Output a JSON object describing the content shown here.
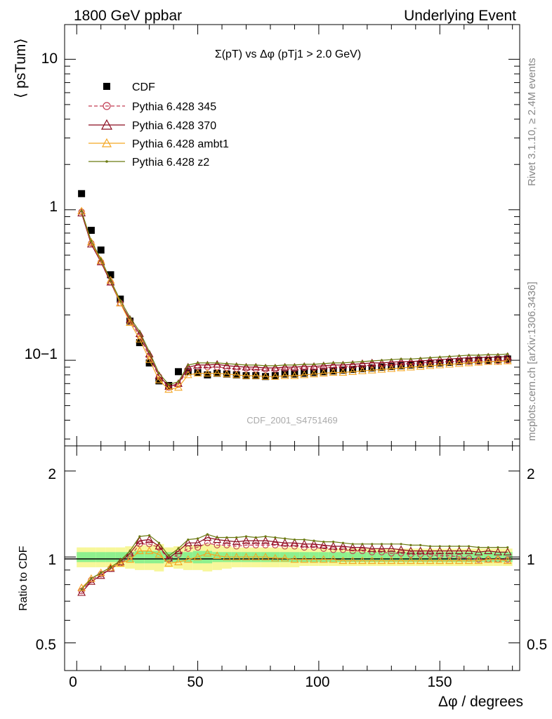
{
  "header": {
    "left_label": "1800 GeV ppbar",
    "right_label": "Underlying Event"
  },
  "side_labels": {
    "rivet": "Rivet 3.1.10, ≥ 2.4M events",
    "mcplots": "mcplots.cern.ch [arXiv:1306.3436]"
  },
  "watermark": "CDF_2001_S4751469",
  "colors": {
    "data": "#000000",
    "p345": "#c23b52",
    "p370": "#8b0a1e",
    "ambt1": "#f4a623",
    "z2": "#6b7a12",
    "band_inner": "#8ef08e",
    "band_outer": "#f7f79a"
  },
  "chart_data": [
    {
      "type": "scatter",
      "panel": "main",
      "title": "Σ(pT) vs Δφ (pTj1 > 2.0 GeV)",
      "ylabel": "⟨ psTum⟩",
      "yscale": "log",
      "xlim": [
        -5,
        183
      ],
      "ylim": [
        0.027,
        17
      ],
      "y_tick_labels": [
        "10",
        "1",
        "10−1"
      ],
      "legend_position": "top-left",
      "x": [
        2,
        6,
        10,
        14,
        18,
        22,
        26,
        30,
        34,
        38,
        42,
        46,
        50,
        54,
        58,
        62,
        66,
        70,
        74,
        78,
        82,
        86,
        90,
        94,
        98,
        102,
        106,
        110,
        114,
        118,
        122,
        126,
        130,
        134,
        138,
        142,
        146,
        150,
        154,
        158,
        162,
        166,
        170,
        174,
        178
      ],
      "series": [
        {
          "name": "CDF",
          "marker": "filled-square",
          "values": [
            1.28,
            0.73,
            0.54,
            0.37,
            0.255,
            0.182,
            0.131,
            0.096,
            0.073,
            0.068,
            0.084,
            0.084,
            0.083,
            0.08,
            0.082,
            0.081,
            0.08,
            0.079,
            0.079,
            0.078,
            0.079,
            0.081,
            0.081,
            0.082,
            0.083,
            0.084,
            0.085,
            0.086,
            0.087,
            0.088,
            0.089,
            0.09,
            0.091,
            0.092,
            0.093,
            0.094,
            0.095,
            0.096,
            0.097,
            0.098,
            0.099,
            0.1,
            0.1,
            0.101,
            0.102
          ]
        },
        {
          "name": "Pythia 6.428 345",
          "marker": "open-circle",
          "values": [
            0.97,
            0.6,
            0.45,
            0.33,
            0.24,
            0.182,
            0.145,
            0.106,
            0.078,
            0.066,
            0.069,
            0.087,
            0.09,
            0.09,
            0.09,
            0.089,
            0.088,
            0.088,
            0.087,
            0.087,
            0.087,
            0.088,
            0.088,
            0.089,
            0.089,
            0.09,
            0.09,
            0.091,
            0.091,
            0.092,
            0.093,
            0.093,
            0.094,
            0.095,
            0.095,
            0.096,
            0.097,
            0.097,
            0.098,
            0.098,
            0.098,
            0.098,
            0.098,
            0.099,
            0.1
          ]
        },
        {
          "name": "Pythia 6.428 370",
          "marker": "open-triangle",
          "values": [
            0.95,
            0.59,
            0.45,
            0.33,
            0.24,
            0.187,
            0.15,
            0.11,
            0.079,
            0.067,
            0.07,
            0.09,
            0.093,
            0.093,
            0.094,
            0.092,
            0.091,
            0.09,
            0.09,
            0.089,
            0.089,
            0.09,
            0.09,
            0.091,
            0.091,
            0.092,
            0.093,
            0.093,
            0.094,
            0.095,
            0.096,
            0.096,
            0.097,
            0.098,
            0.098,
            0.099,
            0.1,
            0.101,
            0.102,
            0.103,
            0.104,
            0.104,
            0.105,
            0.105,
            0.106
          ]
        },
        {
          "name": "Pythia 6.428 ambt1",
          "marker": "open-triangle",
          "values": [
            0.98,
            0.61,
            0.46,
            0.34,
            0.24,
            0.178,
            0.138,
            0.101,
            0.074,
            0.064,
            0.066,
            0.08,
            0.082,
            0.082,
            0.082,
            0.081,
            0.08,
            0.079,
            0.079,
            0.078,
            0.078,
            0.079,
            0.079,
            0.08,
            0.081,
            0.082,
            0.083,
            0.083,
            0.084,
            0.085,
            0.086,
            0.087,
            0.088,
            0.089,
            0.09,
            0.091,
            0.092,
            0.093,
            0.094,
            0.095,
            0.096,
            0.097,
            0.098,
            0.098,
            0.099
          ]
        },
        {
          "name": "Pythia 6.428 z2",
          "marker": "small-dot",
          "values": [
            0.98,
            0.62,
            0.47,
            0.34,
            0.25,
            0.193,
            0.155,
            0.114,
            0.082,
            0.069,
            0.072,
            0.093,
            0.096,
            0.096,
            0.096,
            0.095,
            0.094,
            0.093,
            0.093,
            0.092,
            0.092,
            0.093,
            0.093,
            0.094,
            0.094,
            0.095,
            0.096,
            0.096,
            0.097,
            0.098,
            0.099,
            0.1,
            0.101,
            0.102,
            0.102,
            0.103,
            0.104,
            0.105,
            0.106,
            0.107,
            0.108,
            0.108,
            0.109,
            0.109,
            0.11
          ]
        }
      ]
    },
    {
      "type": "line",
      "panel": "ratio",
      "xlabel": "Δφ / degrees",
      "ylabel": "Ratio to CDF",
      "yscale": "log",
      "xlim": [
        -5,
        183
      ],
      "ylim": [
        0.4,
        2.45
      ],
      "x_tick_labels": [
        "0",
        "50",
        "100",
        "150"
      ],
      "y_tick_labels": [
        "2",
        "1",
        "0.5"
      ],
      "x": [
        2,
        6,
        10,
        14,
        18,
        22,
        26,
        30,
        34,
        38,
        42,
        46,
        50,
        54,
        58,
        62,
        66,
        70,
        74,
        78,
        82,
        86,
        90,
        94,
        98,
        102,
        106,
        110,
        114,
        118,
        122,
        126,
        130,
        134,
        138,
        142,
        146,
        150,
        154,
        158,
        162,
        166,
        170,
        174,
        178
      ],
      "band_inner_halfwidth": [
        0.04,
        0.04,
        0.04,
        0.04,
        0.04,
        0.04,
        0.05,
        0.05,
        0.05,
        0.04,
        0.04,
        0.04,
        0.05,
        0.05,
        0.04,
        0.04,
        0.04,
        0.04,
        0.04,
        0.04,
        0.04,
        0.04,
        0.04,
        0.04,
        0.04,
        0.04,
        0.04,
        0.04,
        0.04,
        0.04,
        0.04,
        0.04,
        0.04,
        0.04,
        0.04,
        0.04,
        0.04,
        0.04,
        0.04,
        0.04,
        0.04,
        0.04,
        0.04,
        0.04,
        0.04
      ],
      "band_outer_halfwidth": [
        0.08,
        0.08,
        0.08,
        0.08,
        0.08,
        0.09,
        0.1,
        0.1,
        0.11,
        0.08,
        0.09,
        0.1,
        0.1,
        0.11,
        0.1,
        0.09,
        0.08,
        0.08,
        0.08,
        0.08,
        0.08,
        0.08,
        0.08,
        0.07,
        0.07,
        0.07,
        0.07,
        0.07,
        0.07,
        0.07,
        0.07,
        0.07,
        0.07,
        0.07,
        0.07,
        0.07,
        0.07,
        0.07,
        0.07,
        0.07,
        0.07,
        0.07,
        0.07,
        0.07,
        0.07
      ],
      "series": [
        {
          "name": "Pythia 6.428 345",
          "values": [
            0.76,
            0.83,
            0.87,
            0.91,
            0.95,
            1.0,
            1.11,
            1.11,
            1.08,
            0.98,
            1.02,
            1.07,
            1.08,
            1.12,
            1.1,
            1.1,
            1.09,
            1.1,
            1.1,
            1.1,
            1.1,
            1.09,
            1.09,
            1.08,
            1.08,
            1.07,
            1.06,
            1.06,
            1.05,
            1.05,
            1.04,
            1.04,
            1.03,
            1.03,
            1.02,
            1.02,
            1.02,
            1.01,
            1.01,
            1.0,
            0.99,
            0.98,
            0.98,
            0.98,
            0.98
          ]
        },
        {
          "name": "Pythia 6.428 370",
          "values": [
            0.75,
            0.82,
            0.86,
            0.91,
            0.96,
            1.03,
            1.14,
            1.15,
            1.09,
            0.99,
            1.05,
            1.12,
            1.12,
            1.17,
            1.15,
            1.14,
            1.13,
            1.14,
            1.14,
            1.14,
            1.13,
            1.12,
            1.12,
            1.11,
            1.11,
            1.1,
            1.09,
            1.09,
            1.08,
            1.08,
            1.07,
            1.07,
            1.07,
            1.06,
            1.05,
            1.05,
            1.05,
            1.05,
            1.05,
            1.05,
            1.05,
            1.04,
            1.05,
            1.04,
            1.04
          ]
        },
        {
          "name": "Pythia 6.428 ambt1",
          "values": [
            0.78,
            0.84,
            0.88,
            0.92,
            0.95,
            0.98,
            1.05,
            1.05,
            1.02,
            0.95,
            0.96,
            0.98,
            1.0,
            1.03,
            1.01,
            1.0,
            1.0,
            1.0,
            1.0,
            1.0,
            0.99,
            0.99,
            0.98,
            0.98,
            0.98,
            0.98,
            0.98,
            0.97,
            0.97,
            0.97,
            0.97,
            0.97,
            0.97,
            0.97,
            0.97,
            0.97,
            0.97,
            0.97,
            0.97,
            0.97,
            0.97,
            0.97,
            0.98,
            0.98,
            0.97
          ]
        },
        {
          "name": "Pythia 6.428 z2",
          "values": [
            0.77,
            0.84,
            0.88,
            0.92,
            0.97,
            1.05,
            1.18,
            1.19,
            1.12,
            1.01,
            1.07,
            1.15,
            1.16,
            1.2,
            1.17,
            1.17,
            1.17,
            1.18,
            1.17,
            1.18,
            1.17,
            1.16,
            1.15,
            1.15,
            1.14,
            1.13,
            1.13,
            1.12,
            1.11,
            1.11,
            1.11,
            1.11,
            1.11,
            1.11,
            1.1,
            1.1,
            1.09,
            1.09,
            1.09,
            1.09,
            1.09,
            1.08,
            1.08,
            1.08,
            1.08
          ]
        }
      ]
    }
  ]
}
